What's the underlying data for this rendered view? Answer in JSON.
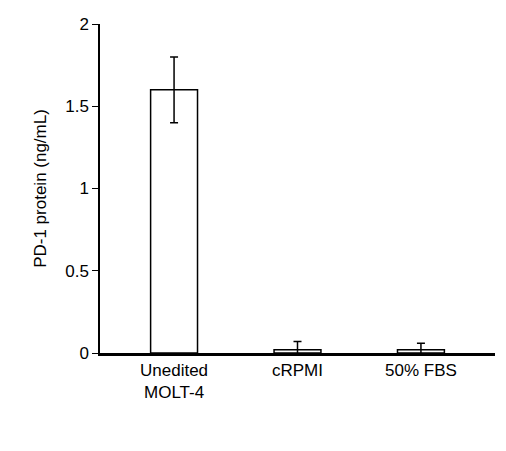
{
  "chart_data": {
    "type": "bar",
    "y_label": "PD-1 protein (ng/mL)",
    "categories": [
      "Unedited MOLT-4",
      "cRPMI",
      "50% FBS"
    ],
    "values": [
      1.6,
      0.02,
      0.02
    ],
    "errors": [
      0.2,
      0.05,
      0.04
    ],
    "color": "#ffffff",
    "ylim": [
      0,
      2
    ],
    "yticks": [
      0,
      0.5,
      1,
      1.5,
      2
    ],
    "grid": false
  }
}
